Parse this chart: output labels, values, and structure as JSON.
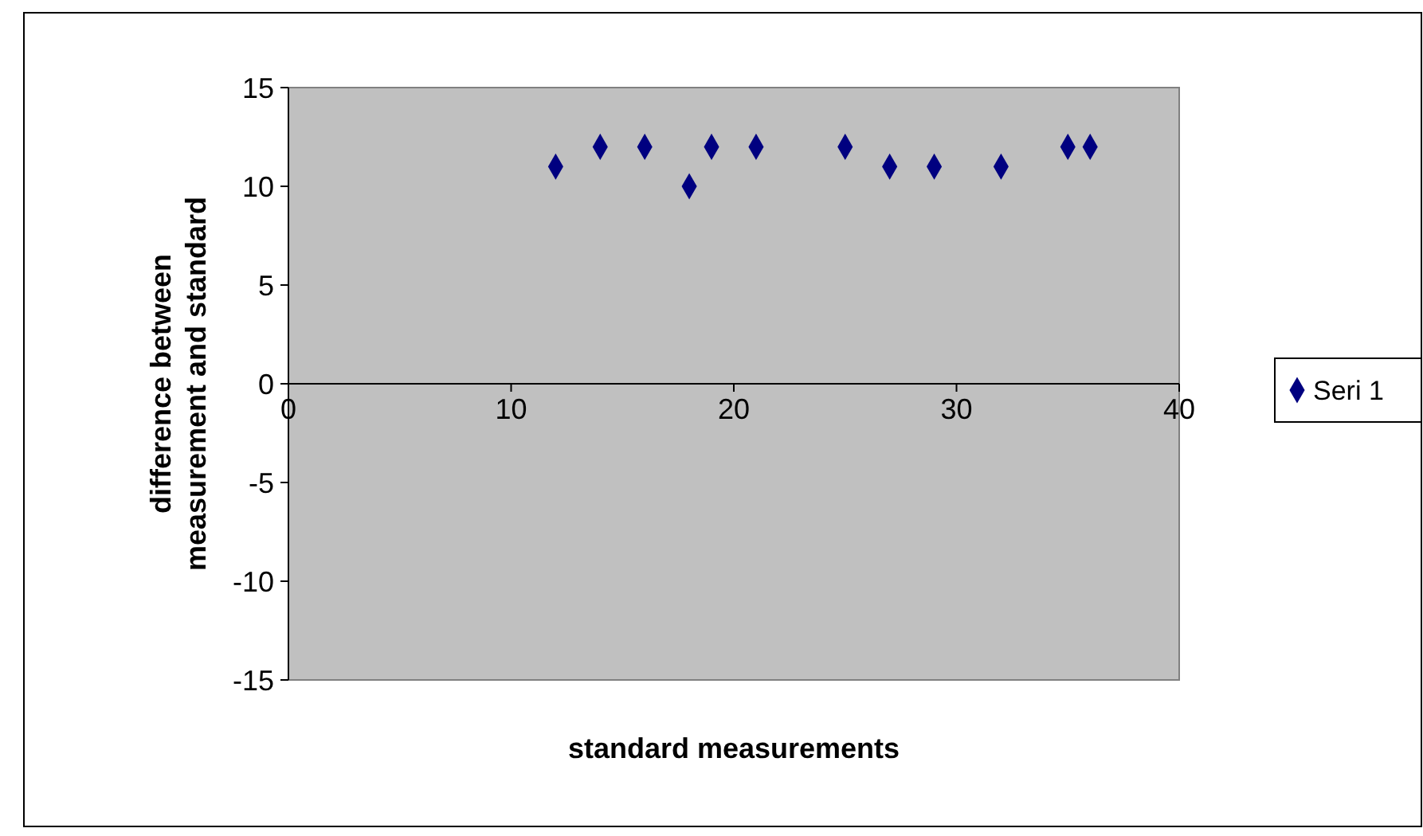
{
  "chart_data": {
    "type": "scatter",
    "xlabel": "standard measurements",
    "ylabel": "difference between measurement and standard",
    "x": [
      12,
      14,
      16,
      18,
      19,
      21,
      25,
      27,
      29,
      32,
      35,
      36
    ],
    "series": [
      {
        "name": "Seri 1",
        "color": "#000080",
        "values": [
          11,
          12,
          12,
          10,
          12,
          12,
          12,
          11,
          11,
          11,
          12,
          12
        ]
      }
    ],
    "xlim": [
      0,
      40
    ],
    "xticks": [
      0,
      10,
      20,
      30,
      40
    ],
    "ylim": [
      -15,
      15
    ],
    "yticks": [
      -15,
      -10,
      -5,
      0,
      5,
      10,
      15
    ],
    "marker": "diamond",
    "legend": "right",
    "grid": false
  }
}
